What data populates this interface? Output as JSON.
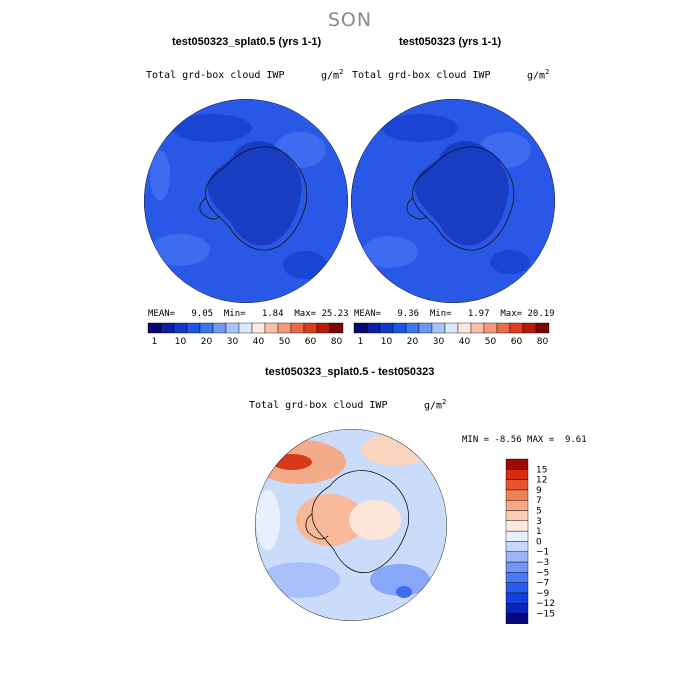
{
  "season": "SON",
  "panels": [
    {
      "title": "test050323_splat0.5 (yrs 1-1)",
      "variable": "Total grd-box cloud IWP",
      "units": "g/m",
      "mean": "9.05",
      "min": "1.84",
      "max": "25.23"
    },
    {
      "title": "test050323 (yrs 1-1)",
      "variable": "Total grd-box cloud IWP",
      "units": "g/m",
      "mean": "9.36",
      "min": "1.97",
      "max": "20.19"
    }
  ],
  "stat_labels": {
    "mean": "MEAN=",
    "min": "Min=",
    "max": "Max="
  },
  "colorbar_abs": {
    "colors": [
      "#08086e",
      "#0c1ea8",
      "#1239cc",
      "#1e55e6",
      "#3d74f2",
      "#6e98f7",
      "#a8c2fb",
      "#dde8fe",
      "#fde9dd",
      "#f9c2a8",
      "#f39a7a",
      "#ea6a48",
      "#dc3d20",
      "#b81a0a",
      "#7a0503"
    ],
    "labels": [
      "1",
      "10",
      "20",
      "30",
      "40",
      "50",
      "60",
      "80"
    ]
  },
  "diff": {
    "title": "test050323_splat0.5 - test050323",
    "variable": "Total grd-box cloud IWP",
    "units": "g/m",
    "min_label": "MIN =",
    "min": "-8.56",
    "max_label": "MAX =",
    "max": "9.61",
    "colorbar": {
      "colors": [
        "#07087a",
        "#0b25b8",
        "#1340d8",
        "#2a5cec",
        "#4b79f3",
        "#7396f6",
        "#9db5f8",
        "#c7d6fb",
        "#e9effd",
        "#fdeade",
        "#fbcdb7",
        "#f6a886",
        "#f08056",
        "#e6562a",
        "#d42e0f",
        "#9c0c02"
      ],
      "labels": [
        "15",
        "12",
        "9",
        "7",
        "5",
        "3",
        "1",
        "0",
        "−1",
        "−3",
        "−5",
        "−7",
        "−9",
        "−12",
        "−15"
      ]
    }
  }
}
